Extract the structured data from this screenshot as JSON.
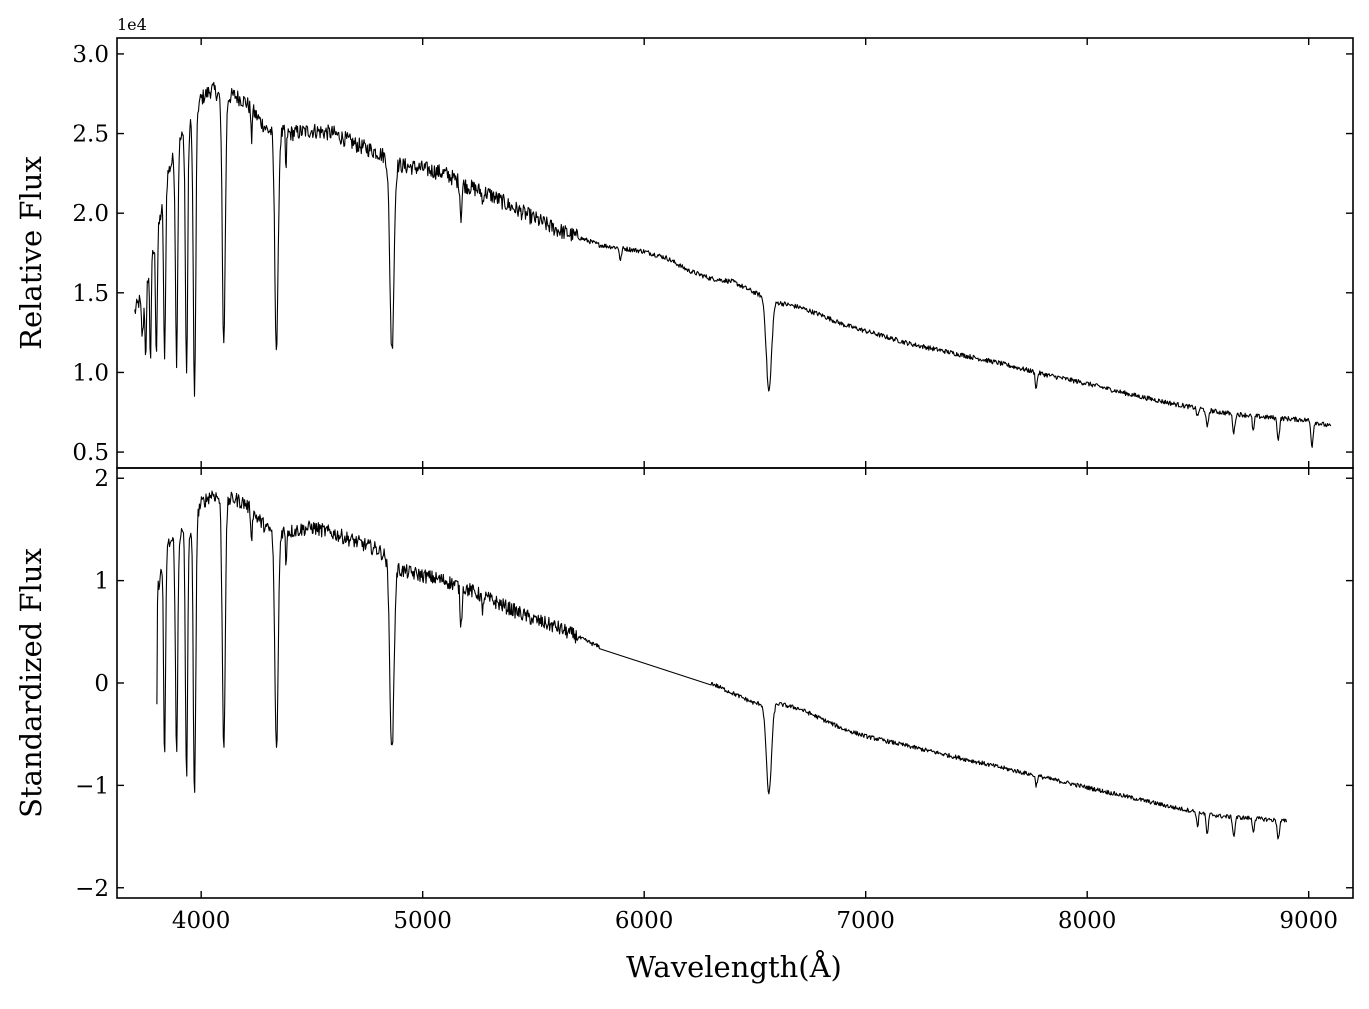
{
  "chart_data": [
    {
      "type": "line",
      "ylabel": "Relative Flux",
      "offset_text": "1e4",
      "xlim": [
        3620,
        9200
      ],
      "ylim": [
        0.4,
        3.1
      ],
      "y_multiplier": 10000,
      "xticks": [
        4000,
        5000,
        6000,
        7000,
        8000,
        9000
      ],
      "yticks": [
        0.5,
        1.0,
        1.5,
        2.0,
        2.5,
        3.0
      ],
      "ytick_labels": [
        "0.5",
        "1.0",
        "1.5",
        "2.0",
        "2.5",
        "3.0"
      ],
      "continuum": [
        [
          3700,
          1.38
        ],
        [
          3750,
          1.55
        ],
        [
          3800,
          1.85
        ],
        [
          3850,
          2.25
        ],
        [
          3900,
          2.45
        ],
        [
          3950,
          2.55
        ],
        [
          4000,
          2.72
        ],
        [
          4050,
          2.78
        ],
        [
          4100,
          2.72
        ],
        [
          4150,
          2.74
        ],
        [
          4200,
          2.7
        ],
        [
          4300,
          2.52
        ],
        [
          4400,
          2.5
        ],
        [
          4500,
          2.52
        ],
        [
          4600,
          2.5
        ],
        [
          4700,
          2.43
        ],
        [
          4800,
          2.38
        ],
        [
          4900,
          2.3
        ],
        [
          5000,
          2.28
        ],
        [
          5100,
          2.25
        ],
        [
          5200,
          2.17
        ],
        [
          5300,
          2.12
        ],
        [
          5400,
          2.04
        ],
        [
          5500,
          1.97
        ],
        [
          5600,
          1.9
        ],
        [
          5700,
          1.85
        ],
        [
          5800,
          1.8
        ],
        [
          5900,
          1.78
        ],
        [
          6000,
          1.76
        ],
        [
          6100,
          1.72
        ],
        [
          6200,
          1.64
        ],
        [
          6300,
          1.59
        ],
        [
          6400,
          1.57
        ],
        [
          6500,
          1.5
        ],
        [
          6600,
          1.44
        ],
        [
          6700,
          1.41
        ],
        [
          6800,
          1.36
        ],
        [
          6900,
          1.3
        ],
        [
          7000,
          1.26
        ],
        [
          7200,
          1.18
        ],
        [
          7400,
          1.12
        ],
        [
          7600,
          1.06
        ],
        [
          7800,
          0.99
        ],
        [
          8000,
          0.93
        ],
        [
          8200,
          0.86
        ],
        [
          8400,
          0.8
        ],
        [
          8600,
          0.75
        ],
        [
          8800,
          0.72
        ],
        [
          9000,
          0.7
        ],
        [
          9100,
          0.66
        ]
      ],
      "absorption_lines": [
        [
          3735,
          1.23,
          12
        ],
        [
          3750,
          1.08,
          8
        ],
        [
          3771,
          1.08,
          8
        ],
        [
          3798,
          1.12,
          9
        ],
        [
          3835,
          1.05,
          10
        ],
        [
          3889,
          1.08,
          12
        ],
        [
          3934,
          0.98,
          12
        ],
        [
          3970,
          0.82,
          13
        ],
        [
          4102,
          1.18,
          16
        ],
        [
          4227,
          2.45,
          6
        ],
        [
          4340,
          1.14,
          18
        ],
        [
          4383,
          2.25,
          6
        ],
        [
          4861,
          1.14,
          22
        ],
        [
          5173,
          1.98,
          10
        ],
        [
          5270,
          2.05,
          6
        ],
        [
          5893,
          1.7,
          10
        ],
        [
          6563,
          0.88,
          28
        ],
        [
          7770,
          0.9,
          10
        ],
        [
          8498,
          0.72,
          10
        ],
        [
          8542,
          0.65,
          12
        ],
        [
          8662,
          0.62,
          12
        ],
        [
          8750,
          0.63,
          10
        ],
        [
          8863,
          0.58,
          12
        ],
        [
          9015,
          0.54,
          12
        ]
      ]
    },
    {
      "type": "line",
      "ylabel": "Standardized Flux",
      "xlabel": "Wavelength(Å)",
      "xlim": [
        3620,
        9200
      ],
      "ylim": [
        -2.1,
        2.1
      ],
      "xticks": [
        4000,
        5000,
        6000,
        7000,
        8000,
        9000
      ],
      "xtick_labels": [
        "4000",
        "5000",
        "6000",
        "7000",
        "8000",
        "9000"
      ],
      "yticks": [
        -2,
        -1,
        0,
        1,
        2
      ],
      "ytick_labels": [
        "−2",
        "−1",
        "0",
        "1",
        "2"
      ],
      "gap": [
        5800,
        6300
      ],
      "continuum": [
        [
          3800,
          0.9
        ],
        [
          3850,
          1.35
        ],
        [
          3900,
          1.45
        ],
        [
          3950,
          1.5
        ],
        [
          4000,
          1.75
        ],
        [
          4050,
          1.85
        ],
        [
          4100,
          1.78
        ],
        [
          4150,
          1.8
        ],
        [
          4200,
          1.75
        ],
        [
          4300,
          1.5
        ],
        [
          4400,
          1.48
        ],
        [
          4500,
          1.52
        ],
        [
          4600,
          1.46
        ],
        [
          4700,
          1.38
        ],
        [
          4800,
          1.3
        ],
        [
          4900,
          1.1
        ],
        [
          5000,
          1.05
        ],
        [
          5100,
          1.0
        ],
        [
          5200,
          0.92
        ],
        [
          5300,
          0.82
        ],
        [
          5400,
          0.72
        ],
        [
          5500,
          0.62
        ],
        [
          5600,
          0.55
        ],
        [
          5700,
          0.45
        ],
        [
          5800,
          0.35
        ],
        [
          6300,
          0.0
        ],
        [
          6400,
          -0.1
        ],
        [
          6500,
          -0.2
        ],
        [
          6600,
          -0.2
        ],
        [
          6700,
          -0.25
        ],
        [
          6800,
          -0.35
        ],
        [
          6900,
          -0.45
        ],
        [
          7000,
          -0.52
        ],
        [
          7200,
          -0.62
        ],
        [
          7400,
          -0.72
        ],
        [
          7600,
          -0.82
        ],
        [
          7800,
          -0.92
        ],
        [
          8000,
          -1.02
        ],
        [
          8200,
          -1.12
        ],
        [
          8400,
          -1.22
        ],
        [
          8600,
          -1.3
        ],
        [
          8800,
          -1.33
        ],
        [
          8900,
          -1.35
        ]
      ],
      "absorption_lines": [
        [
          3798,
          -0.58,
          6
        ],
        [
          3835,
          -0.8,
          10
        ],
        [
          3889,
          -0.72,
          12
        ],
        [
          3934,
          -0.92,
          12
        ],
        [
          3970,
          -1.18,
          13
        ],
        [
          4102,
          -0.6,
          16
        ],
        [
          4227,
          1.35,
          6
        ],
        [
          4340,
          -0.68,
          18
        ],
        [
          4383,
          1.15,
          6
        ],
        [
          4861,
          -0.68,
          22
        ],
        [
          5173,
          0.55,
          10
        ],
        [
          5270,
          0.62,
          6
        ],
        [
          6563,
          -1.08,
          28
        ],
        [
          7770,
          -1.0,
          10
        ],
        [
          8498,
          -1.4,
          10
        ],
        [
          8542,
          -1.48,
          12
        ],
        [
          8662,
          -1.5,
          12
        ],
        [
          8750,
          -1.45,
          10
        ],
        [
          8863,
          -1.52,
          12
        ]
      ]
    }
  ]
}
